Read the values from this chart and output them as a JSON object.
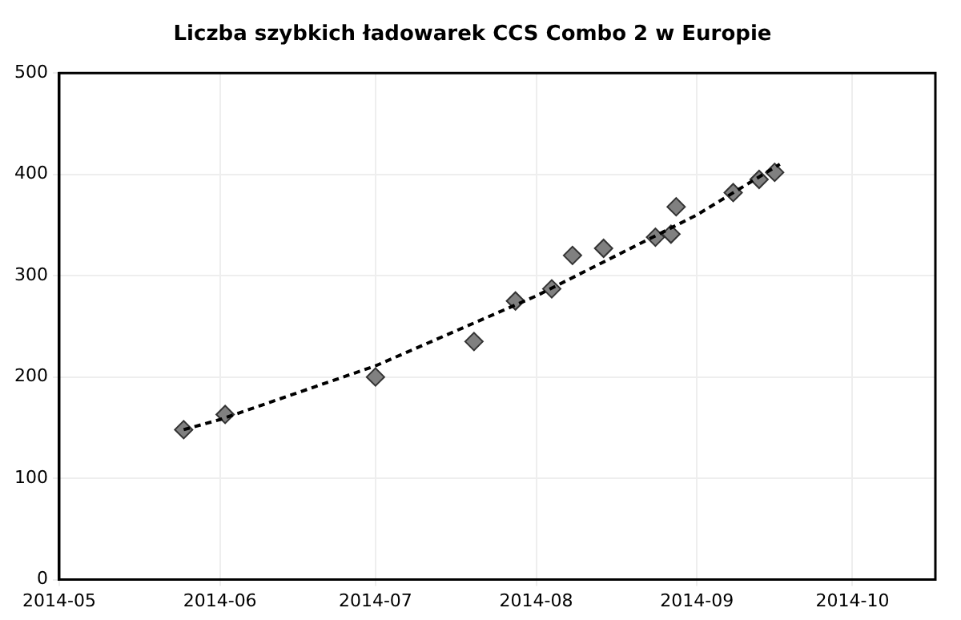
{
  "chart_data": {
    "type": "scatter",
    "title": "Liczba szybkich ładowarek CCS Combo 2 w Europie",
    "series": [
      {
        "color": "#808080",
        "marker": "diamond",
        "x": [
          "2014-05-25",
          "2014-06-02",
          "2014-07-01",
          "2014-07-20",
          "2014-07-28",
          "2014-08-04",
          "2014-08-08",
          "2014-08-14",
          "2014-08-24",
          "2014-08-27",
          "2014-08-28",
          "2014-09-08",
          "2014-09-13",
          "2014-09-16"
        ],
        "values": [
          148,
          163,
          200,
          235,
          275,
          287,
          320,
          327,
          338,
          341,
          368,
          382,
          395,
          402
        ]
      },
      {
        "type": "line",
        "color": "#000000",
        "line_style": "dashed",
        "marker": "none",
        "x": [
          "2014-05-25",
          "2014-06-01",
          "2014-07-01",
          "2014-08-01",
          "2014-09-01",
          "2014-09-17"
        ],
        "values": [
          148,
          158,
          211,
          280,
          360,
          410
        ]
      }
    ],
    "xlim": [
      "2014-05",
      "2014-10-17"
    ],
    "xticks": [
      "2014-05",
      "2014-06",
      "2014-07",
      "2014-08",
      "2014-09",
      "2014-10"
    ],
    "ylim": [
      0,
      500
    ],
    "yticks": [
      0,
      100,
      200,
      300,
      400,
      500
    ],
    "grid": true,
    "legend": false
  }
}
